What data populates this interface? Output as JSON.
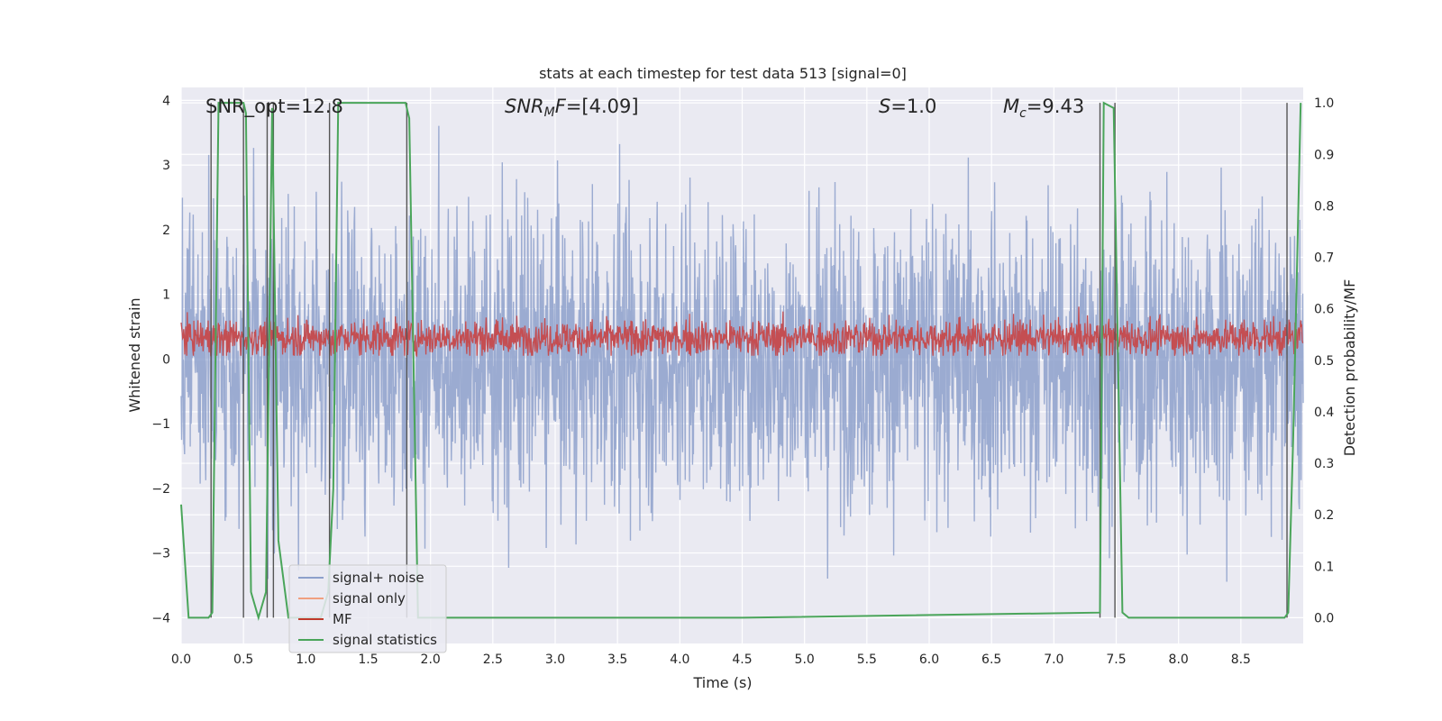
{
  "chart_data": {
    "type": "line",
    "title": "stats at each timestep for test data 513 [signal=0]",
    "xlabel": "Time (s)",
    "ylabel": "Whitened strain",
    "ylabel_right": "Detection probability/MF",
    "xlim": [
      0.0,
      9.0
    ],
    "ylim": [
      -4.4,
      4.2
    ],
    "ylim_right": [
      -0.05,
      1.03
    ],
    "x_ticks": [
      "0.0",
      "0.5",
      "1.0",
      "1.5",
      "2.0",
      "2.5",
      "3.0",
      "3.5",
      "4.0",
      "4.5",
      "5.0",
      "5.5",
      "6.0",
      "6.5",
      "7.0",
      "7.5",
      "8.0",
      "8.5"
    ],
    "y_ticks": [
      "4",
      "3",
      "2",
      "1",
      "0",
      "−1",
      "−2",
      "−3",
      "−4"
    ],
    "y_right_ticks": [
      "1.0",
      "0.9",
      "0.8",
      "0.7",
      "0.6",
      "0.5",
      "0.4",
      "0.3",
      "0.2",
      "0.1",
      "0.0"
    ],
    "grid": true,
    "legend_position": "bottom-left",
    "annotations": {
      "snr_opt": "SNR_opt=12.8",
      "snr_mf_main": "SNR",
      "snr_mf_sub": "M",
      "snr_mf_f": "F",
      "snr_mf_value": "=[4.09]",
      "s_main": "S",
      "s_value": "=1.0",
      "mc_main": "M",
      "mc_sub": "c",
      "mc_value": "=9.43"
    },
    "legend": [
      {
        "label": "signal+ noise",
        "color": "#8da0cb"
      },
      {
        "label": "signal only",
        "color": "#f0a080"
      },
      {
        "label": "MF",
        "color": "#c0392b"
      },
      {
        "label": "signal statistics",
        "color": "#4aa55a"
      }
    ],
    "series": [
      {
        "name": "signal statistics",
        "axis": "right",
        "color": "#4aa55a",
        "x": [
          0.0,
          0.06,
          0.22,
          0.25,
          0.3,
          0.5,
          0.52,
          0.56,
          0.62,
          0.68,
          0.73,
          0.78,
          0.86,
          1.12,
          1.18,
          1.22,
          1.26,
          1.8,
          1.83,
          1.9,
          2.0,
          4.4,
          4.5,
          7.37,
          7.4,
          7.48,
          7.55,
          7.6,
          8.85,
          8.88,
          8.92,
          8.98
        ],
        "y": [
          0.22,
          0.0,
          0.0,
          0.01,
          1.0,
          1.0,
          0.98,
          0.05,
          0.0,
          0.05,
          0.99,
          0.15,
          0.0,
          0.0,
          0.05,
          0.25,
          1.0,
          1.0,
          0.97,
          0.0,
          0.0,
          0.0,
          0.0,
          0.01,
          1.0,
          0.99,
          0.01,
          0.0,
          0.0,
          0.01,
          0.35,
          1.0
        ]
      }
    ],
    "vertical_markers": [
      0.24,
      0.5,
      0.69,
      0.74,
      1.19,
      1.81,
      7.37,
      7.49,
      8.87
    ],
    "noise_envelope_note": "dense strain band about ±2, MF band about 0.1–0.8"
  }
}
